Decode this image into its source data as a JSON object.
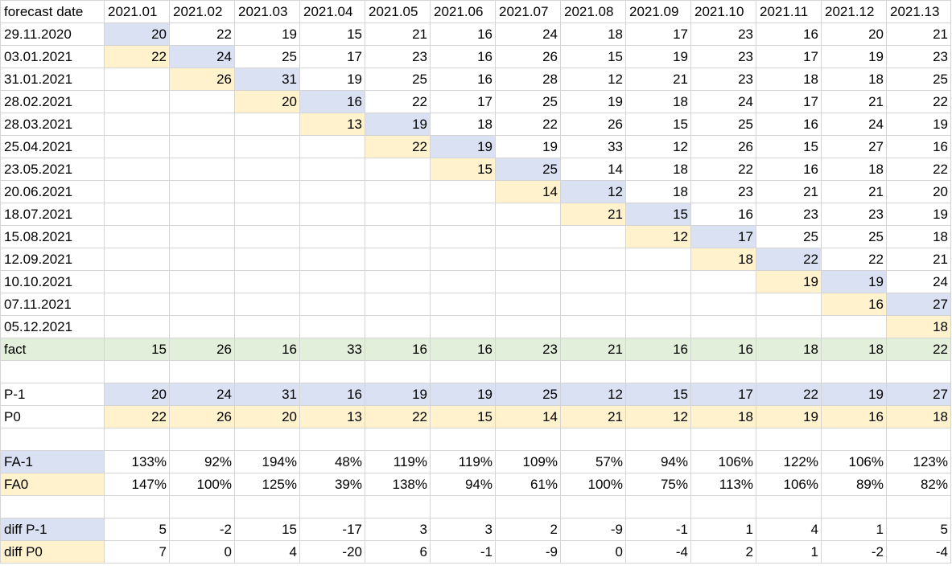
{
  "header": {
    "corner": "forecast date",
    "months": [
      "2021.01",
      "2021.02",
      "2021.03",
      "2021.04",
      "2021.05",
      "2021.06",
      "2021.07",
      "2021.08",
      "2021.09",
      "2021.10",
      "2021.11",
      "2021.12",
      "2021.13"
    ]
  },
  "forecast_rows": [
    {
      "date": "29.11.2020",
      "values": [
        "20",
        "22",
        "19",
        "15",
        "21",
        "16",
        "24",
        "18",
        "17",
        "23",
        "16",
        "20",
        "21"
      ]
    },
    {
      "date": "03.01.2021",
      "values": [
        "22",
        "24",
        "25",
        "17",
        "23",
        "16",
        "26",
        "15",
        "19",
        "23",
        "17",
        "19",
        "23"
      ]
    },
    {
      "date": "31.01.2021",
      "values": [
        "",
        "26",
        "31",
        "19",
        "25",
        "16",
        "28",
        "12",
        "21",
        "23",
        "18",
        "18",
        "25"
      ]
    },
    {
      "date": "28.02.2021",
      "values": [
        "",
        "",
        "20",
        "16",
        "22",
        "17",
        "25",
        "19",
        "18",
        "24",
        "17",
        "21",
        "22"
      ]
    },
    {
      "date": "28.03.2021",
      "values": [
        "",
        "",
        "",
        "13",
        "19",
        "18",
        "22",
        "26",
        "15",
        "25",
        "16",
        "24",
        "19"
      ]
    },
    {
      "date": "25.04.2021",
      "values": [
        "",
        "",
        "",
        "",
        "22",
        "19",
        "19",
        "33",
        "12",
        "26",
        "15",
        "27",
        "16"
      ]
    },
    {
      "date": "23.05.2021",
      "values": [
        "",
        "",
        "",
        "",
        "",
        "15",
        "25",
        "14",
        "18",
        "22",
        "16",
        "18",
        "22"
      ]
    },
    {
      "date": "20.06.2021",
      "values": [
        "",
        "",
        "",
        "",
        "",
        "",
        "14",
        "12",
        "18",
        "23",
        "21",
        "21",
        "20"
      ]
    },
    {
      "date": "18.07.2021",
      "values": [
        "",
        "",
        "",
        "",
        "",
        "",
        "",
        "21",
        "15",
        "16",
        "23",
        "23",
        "19"
      ]
    },
    {
      "date": "15.08.2021",
      "values": [
        "",
        "",
        "",
        "",
        "",
        "",
        "",
        "",
        "12",
        "17",
        "25",
        "25",
        "18"
      ]
    },
    {
      "date": "12.09.2021",
      "values": [
        "",
        "",
        "",
        "",
        "",
        "",
        "",
        "",
        "",
        "18",
        "22",
        "22",
        "21"
      ]
    },
    {
      "date": "10.10.2021",
      "values": [
        "",
        "",
        "",
        "",
        "",
        "",
        "",
        "",
        "",
        "",
        "19",
        "19",
        "24"
      ]
    },
    {
      "date": "07.11.2021",
      "values": [
        "",
        "",
        "",
        "",
        "",
        "",
        "",
        "",
        "",
        "",
        "",
        "16",
        "27"
      ]
    },
    {
      "date": "05.12.2021",
      "values": [
        "",
        "",
        "",
        "",
        "",
        "",
        "",
        "",
        "",
        "",
        "",
        "",
        "18"
      ]
    }
  ],
  "fact": {
    "label": "fact",
    "values": [
      "15",
      "26",
      "16",
      "33",
      "16",
      "16",
      "23",
      "21",
      "16",
      "16",
      "18",
      "18",
      "22"
    ]
  },
  "p_minus1": {
    "label": "P-1",
    "values": [
      "20",
      "24",
      "31",
      "16",
      "19",
      "19",
      "25",
      "12",
      "15",
      "17",
      "22",
      "19",
      "27"
    ]
  },
  "p0": {
    "label": "P0",
    "values": [
      "22",
      "26",
      "20",
      "13",
      "22",
      "15",
      "14",
      "21",
      "12",
      "18",
      "19",
      "16",
      "18"
    ]
  },
  "fa_minus1": {
    "label": "FA-1",
    "values": [
      "133%",
      "92%",
      "194%",
      "48%",
      "119%",
      "119%",
      "109%",
      "57%",
      "94%",
      "106%",
      "122%",
      "106%",
      "123%"
    ]
  },
  "fa0": {
    "label": "FA0",
    "values": [
      "147%",
      "100%",
      "125%",
      "39%",
      "138%",
      "94%",
      "61%",
      "100%",
      "75%",
      "113%",
      "106%",
      "89%",
      "82%"
    ]
  },
  "diff_p_minus1": {
    "label": "diff P-1",
    "values": [
      "5",
      "-2",
      "15",
      "-17",
      "3",
      "3",
      "2",
      "-9",
      "-1",
      "1",
      "4",
      "1",
      "5"
    ]
  },
  "diff_p0": {
    "label": "diff P0",
    "values": [
      "7",
      "0",
      "4",
      "-20",
      "6",
      "-1",
      "-9",
      "0",
      "-4",
      "2",
      "1",
      "-2",
      "-4"
    ]
  },
  "colors": {
    "blue": "#d9e1f2",
    "yellow": "#fff2cc",
    "green": "#e2efda",
    "grid": "#d4d4d4"
  }
}
